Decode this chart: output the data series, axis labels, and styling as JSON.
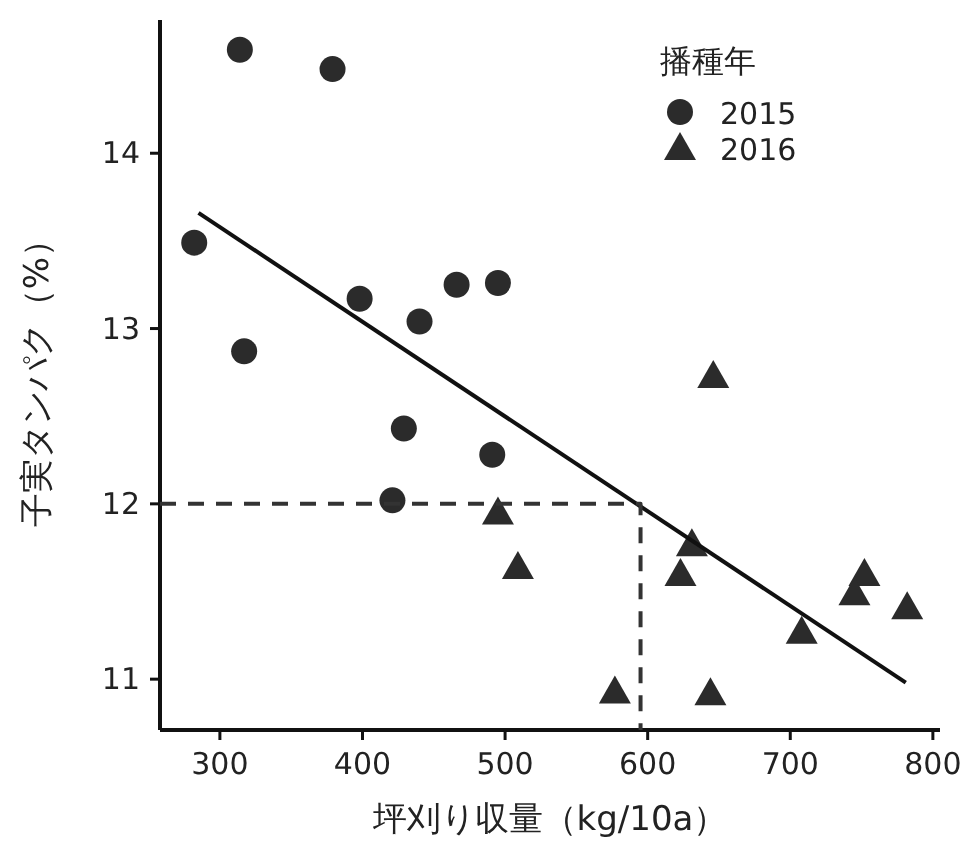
{
  "chart_data": {
    "type": "scatter",
    "xlabel": "坪刈り収量（kg/10a）",
    "ylabel": "子実タンパク（%）",
    "legend_title": "播種年",
    "legend": "top right",
    "grid": false,
    "xlim": [
      258,
      805
    ],
    "ylim": [
      10.71,
      14.76
    ],
    "xticks": [
      300,
      400,
      500,
      600,
      700,
      800
    ],
    "yticks": [
      11,
      12,
      13,
      14
    ],
    "series": [
      {
        "name": "2015",
        "marker": "circle",
        "color": "#2b2b2b",
        "x": [
          282,
          314,
          379,
          398,
          317,
          440,
          466,
          495,
          429,
          421,
          491
        ],
        "values": [
          13.49,
          14.59,
          14.48,
          13.17,
          12.87,
          13.04,
          13.25,
          13.26,
          12.43,
          12.02,
          12.28
        ]
      },
      {
        "name": "2016",
        "marker": "triangle",
        "color": "#2b2b2b",
        "x": [
          495,
          509,
          646,
          577,
          644,
          631,
          623,
          708,
          752,
          745,
          782
        ],
        "values": [
          11.95,
          11.64,
          12.73,
          10.93,
          10.92,
          11.77,
          11.6,
          11.27,
          11.6,
          11.49,
          11.41
        ]
      },
      {
        "type": "line",
        "marker": "none",
        "line_style": "solid",
        "color": "#111111",
        "x": [
          285,
          781
        ],
        "values": [
          13.66,
          10.98
        ]
      },
      {
        "type": "line",
        "marker": "none",
        "line_style": "dashed",
        "color": "#333333",
        "x": [
          258,
          595,
          595
        ],
        "values": [
          12,
          12,
          10.71
        ]
      }
    ]
  }
}
